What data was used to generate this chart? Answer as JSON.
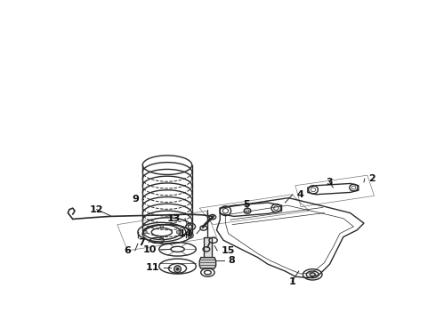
{
  "bg_color": "#ffffff",
  "line_color": "#2a2a2a",
  "label_color": "#111111",
  "gray_fill": "#d8d8d8",
  "light_gray": "#eeeeee",
  "mid_gray": "#bbbbbb"
}
